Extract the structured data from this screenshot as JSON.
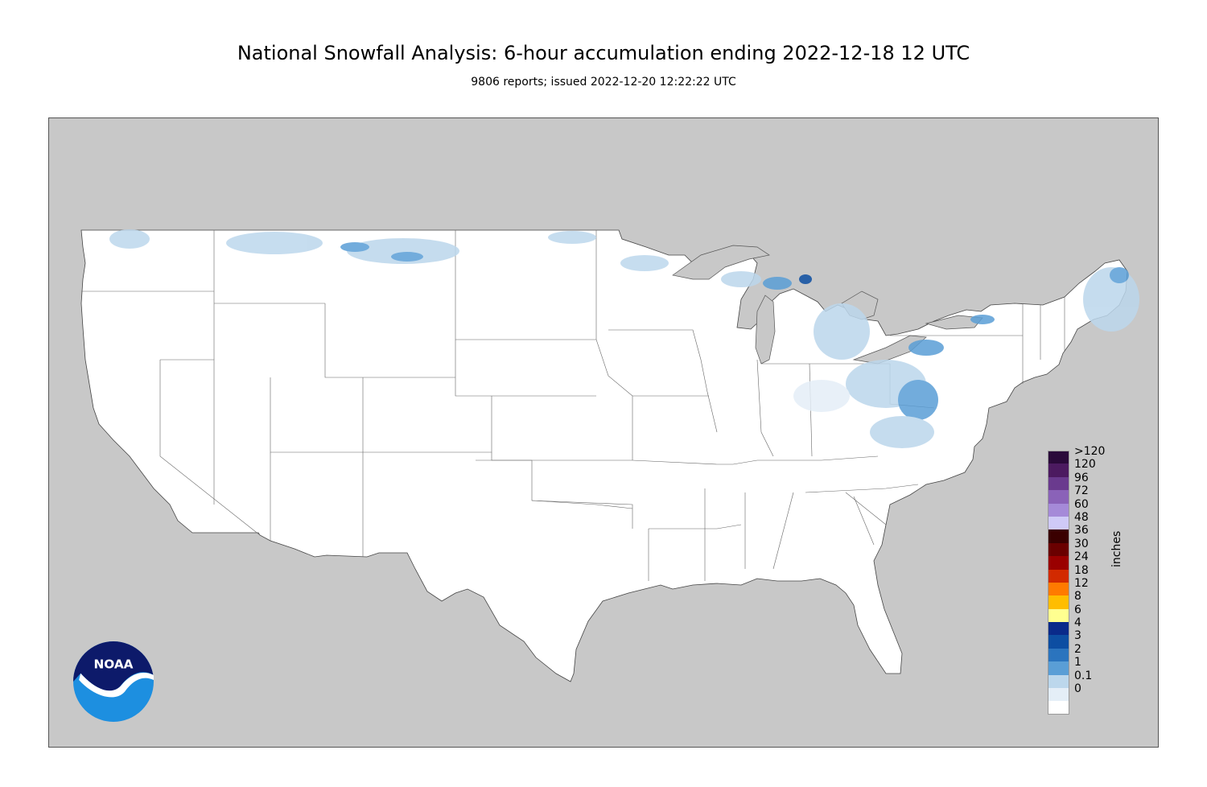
{
  "title": "National Snowfall Analysis: 6-hour accumulation ending 2022-12-18 12 UTC",
  "subtitle": "9806 reports; issued 2022-12-20 12:22:22 UTC",
  "legend": {
    "unit": "inches",
    "items": [
      {
        "label": ">120",
        "color": "#2a0a3a"
      },
      {
        "label": "120",
        "color": "#4c1a60"
      },
      {
        "label": "96",
        "color": "#6a3a8e"
      },
      {
        "label": "72",
        "color": "#8a62b8"
      },
      {
        "label": "60",
        "color": "#a58ad8"
      },
      {
        "label": "48",
        "color": "#cfcaf7"
      },
      {
        "label": "36",
        "color": "#3a0000"
      },
      {
        "label": "30",
        "color": "#6a0000"
      },
      {
        "label": "24",
        "color": "#9a0000"
      },
      {
        "label": "18",
        "color": "#d22a00"
      },
      {
        "label": "12",
        "color": "#ff7a00"
      },
      {
        "label": "8",
        "color": "#ffbd00"
      },
      {
        "label": "6",
        "color": "#ffff90"
      },
      {
        "label": "4",
        "color": "#0a2a8a"
      },
      {
        "label": "3",
        "color": "#0d4ea2"
      },
      {
        "label": "2",
        "color": "#2b74be"
      },
      {
        "label": "1",
        "color": "#5a9ed6"
      },
      {
        "label": "0.1",
        "color": "#bcd7ec"
      },
      {
        "label": "0",
        "color": "#e4eef7"
      },
      {
        "label": "",
        "color": "#ffffff"
      }
    ]
  },
  "logo": {
    "text": "NOAA",
    "icon": "noaa-logo"
  },
  "colors": {
    "background": "#c8c8c8",
    "land": "#ffffff",
    "border": "#555555"
  }
}
